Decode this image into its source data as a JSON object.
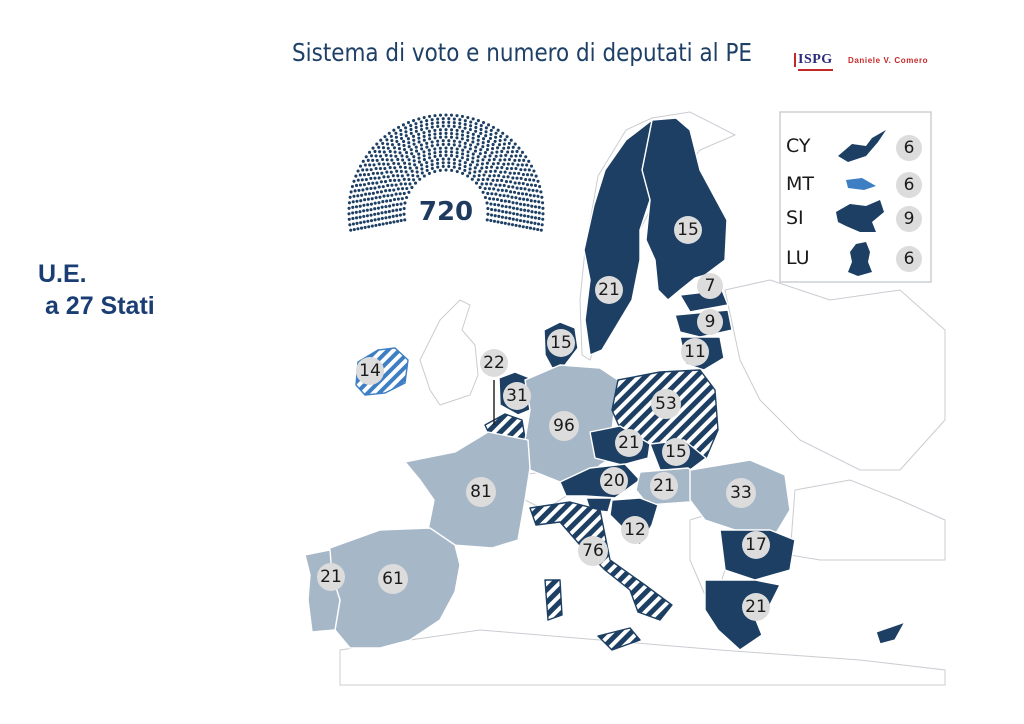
{
  "title": "Sistema di voto e numero di deputati al PE",
  "logo": {
    "org": "ISPG",
    "author": "Daniele V. Comero"
  },
  "side_label": {
    "line1": "U.E.",
    "line2": " a 27 Stati"
  },
  "total_seats": "720",
  "colors": {
    "dark": "#1d3f63",
    "light": "#a6b7c8",
    "hatched_dark": "#1d3f63",
    "ireland": "#3e7fc4",
    "non_eu": "#ffffff",
    "badge": "#dcdcdc"
  },
  "countries": [
    {
      "seats": "15"
    },
    {
      "seats": "21"
    },
    {
      "seats": "7"
    },
    {
      "seats": "9"
    },
    {
      "seats": "11"
    },
    {
      "seats": "15"
    },
    {
      "seats": "14"
    },
    {
      "seats": "22"
    },
    {
      "seats": "31"
    },
    {
      "seats": "96"
    },
    {
      "seats": "53"
    },
    {
      "seats": "21"
    },
    {
      "seats": "15"
    },
    {
      "seats": "20"
    },
    {
      "seats": "21"
    },
    {
      "seats": "33"
    },
    {
      "seats": "81"
    },
    {
      "seats": "12"
    },
    {
      "seats": "76"
    },
    {
      "seats": "17"
    },
    {
      "seats": "21"
    },
    {
      "seats": "61"
    },
    {
      "seats": "21"
    }
  ],
  "legend": [
    {
      "code": "CY",
      "seats": "6",
      "shape": "cyprus-shape"
    },
    {
      "code": "MT",
      "seats": "6",
      "shape": "malta-shape"
    },
    {
      "code": "SI",
      "seats": "9",
      "shape": "slovenia-shape"
    },
    {
      "code": "LU",
      "seats": "6",
      "shape": "luxembourg-shape"
    }
  ]
}
